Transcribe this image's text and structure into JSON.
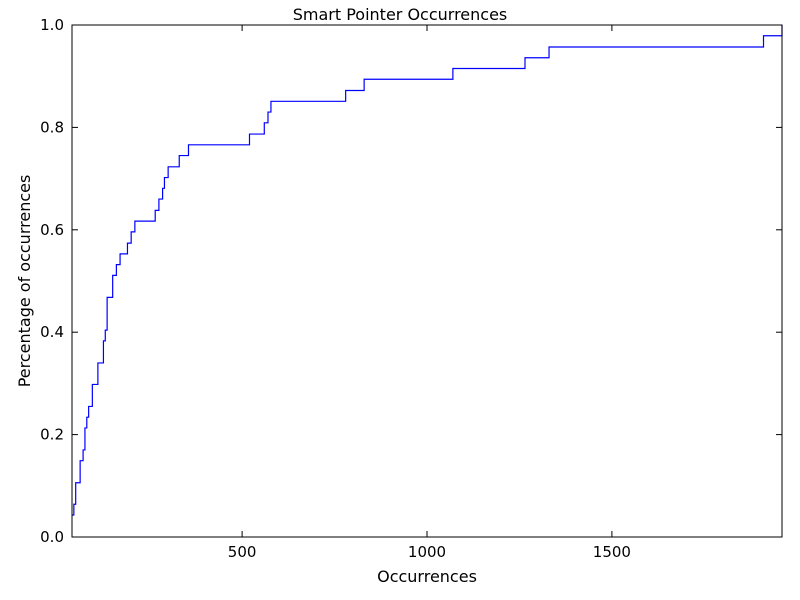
{
  "chart_data": {
    "type": "line",
    "title": "Smart Pointer Occurrences",
    "xlabel": "Occurrences",
    "ylabel": "Percentage of occurrences",
    "xlim": [
      40,
      1960
    ],
    "ylim": [
      0.0,
      1.0
    ],
    "xticks": [
      500,
      1000,
      1500
    ],
    "yticks": [
      0.0,
      0.2,
      0.4,
      0.6,
      0.8,
      1.0
    ],
    "xtick_labels": [
      "500",
      "1000",
      "1500"
    ],
    "ytick_labels": [
      "0.0",
      "0.2",
      "0.4",
      "0.6",
      "0.8",
      "1.0"
    ],
    "grid": false,
    "line_color": "#0000ff",
    "series": [
      {
        "x": [
          40,
          45,
          50,
          55,
          62,
          70,
          75,
          80,
          85,
          90,
          95,
          100,
          110,
          115,
          125,
          130,
          135,
          140,
          150,
          160,
          170,
          175,
          190,
          200,
          210,
          215,
          230,
          265,
          275,
          280,
          285,
          290,
          300,
          310,
          330,
          355,
          400,
          450,
          520,
          555,
          560,
          570,
          578,
          585,
          650,
          700,
          780,
          830,
          900,
          1000,
          1070,
          1100,
          1200,
          1265,
          1330,
          1400,
          1500,
          1600,
          1700,
          1800,
          1910,
          1955,
          1960
        ],
        "y": [
          0.043,
          0.064,
          0.106,
          0.106,
          0.149,
          0.17,
          0.213,
          0.234,
          0.255,
          0.255,
          0.298,
          0.298,
          0.34,
          0.34,
          0.383,
          0.404,
          0.468,
          0.468,
          0.511,
          0.532,
          0.553,
          0.553,
          0.574,
          0.596,
          0.617,
          0.617,
          0.617,
          0.638,
          0.66,
          0.66,
          0.681,
          0.702,
          0.723,
          0.723,
          0.745,
          0.766,
          0.766,
          0.766,
          0.787,
          0.787,
          0.809,
          0.83,
          0.851,
          0.851,
          0.851,
          0.851,
          0.872,
          0.894,
          0.894,
          0.894,
          0.915,
          0.915,
          0.915,
          0.936,
          0.957,
          0.957,
          0.957,
          0.957,
          0.957,
          0.957,
          0.979,
          0.979,
          1.0
        ]
      }
    ]
  }
}
